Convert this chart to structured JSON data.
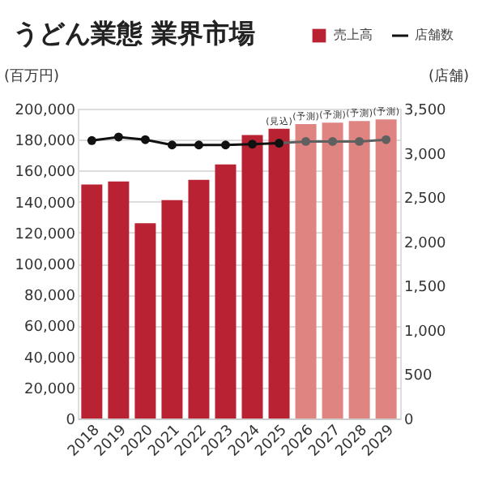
{
  "chart_data": {
    "type": "bar",
    "title": "うどん業態 業界市場",
    "ylabel": "(百万円)",
    "y2label": "(店舗)",
    "categories": [
      "2018",
      "2019",
      "2020",
      "2021",
      "2022",
      "2023",
      "2024",
      "2025",
      "2026",
      "2027",
      "2028",
      "2029"
    ],
    "series": [
      {
        "name": "売上高",
        "color": "#b82233",
        "colors": [
          "#b82233",
          "#b82233",
          "#b82233",
          "#b82233",
          "#b82233",
          "#b82233",
          "#b82233",
          "#b82233",
          "#df8480",
          "#df8480",
          "#df8480",
          "#df8480"
        ],
        "values": [
          151000,
          153000,
          126000,
          141000,
          154000,
          164000,
          183000,
          187000,
          190000,
          191000,
          192000,
          193000
        ]
      },
      {
        "name": "店舗数",
        "type": "line",
        "axis": "y2",
        "color": "#111111",
        "values": [
          3140,
          3180,
          3150,
          3090,
          3090,
          3090,
          3100,
          3110,
          null,
          null,
          null,
          null
        ]
      },
      {
        "type": "line",
        "axis": "y2",
        "color": "#606060",
        "values": [
          null,
          null,
          null,
          null,
          null,
          null,
          null,
          3110,
          3130,
          3130,
          3130,
          3150
        ]
      }
    ],
    "ylim": [
      0,
      200000
    ],
    "yticks": [
      0,
      {
        "value": 20000,
        "label": "20,000"
      },
      {
        "value": 40000,
        "label": "40,000"
      },
      {
        "value": 60000,
        "label": "60,000"
      },
      {
        "value": 80000,
        "label": "80,000"
      },
      {
        "value": 100000,
        "label": "100,000"
      },
      {
        "value": 120000,
        "label": "120,000"
      },
      {
        "value": 140000,
        "label": "140,000"
      },
      {
        "value": 160000,
        "label": "160,000"
      },
      {
        "value": 180000,
        "label": "180,000"
      },
      {
        "value": 200000,
        "label": "200,000"
      }
    ],
    "y2lim": [
      0,
      3500
    ],
    "y2ticks": [
      0,
      500,
      {
        "value": 1000,
        "label": "1,000"
      },
      {
        "value": 1500,
        "label": "1,500"
      },
      {
        "value": 2000,
        "label": "2,000"
      },
      {
        "value": 2500,
        "label": "2,500"
      },
      {
        "value": 3000,
        "label": "3,000"
      },
      {
        "value": 3500,
        "label": "3,500"
      }
    ],
    "annotations": [
      {
        "text": "(見込)",
        "x": "2025",
        "y": 187000
      },
      {
        "text": "(予測)",
        "x": "2026",
        "y": 190000
      },
      {
        "text": "(予測)",
        "x": "2027",
        "y": 191000
      },
      {
        "text": "(予測)",
        "x": "2028",
        "y": 192000
      },
      {
        "text": "(予測)",
        "x": "2029",
        "y": 193000
      }
    ],
    "grid": "y",
    "legend": "top right",
    "marker": "circle"
  }
}
